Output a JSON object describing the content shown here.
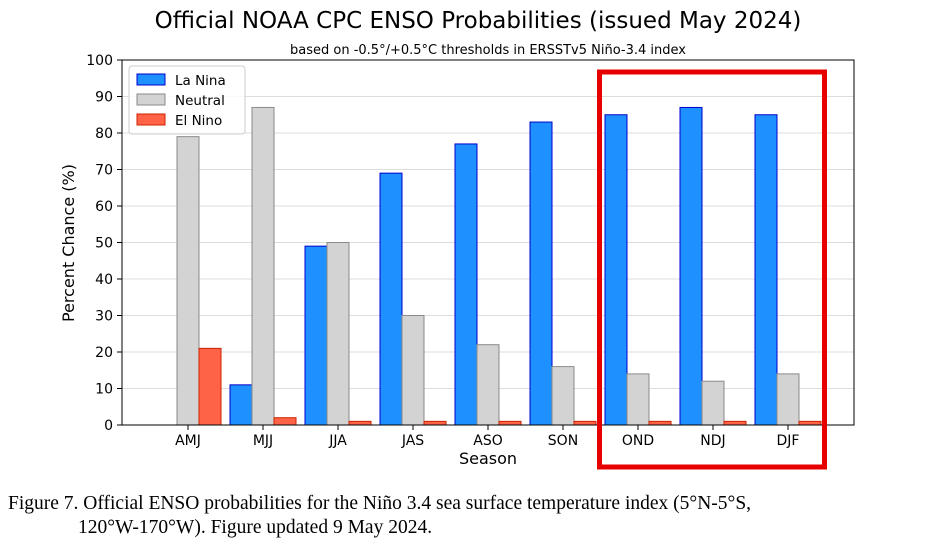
{
  "chart_data": {
    "type": "bar",
    "title": "Official NOAA CPC ENSO Probabilities (issued May 2024)",
    "subtitle": "based on -0.5°/+0.5°C thresholds in ERSSTv5 Niño-3.4 index",
    "xlabel": "Season",
    "ylabel": "Percent Chance (%)",
    "ylim": [
      0,
      100
    ],
    "yticks": [
      "0",
      "10",
      "20",
      "30",
      "40",
      "50",
      "60",
      "70",
      "80",
      "90",
      "100"
    ],
    "grid": true,
    "legend_position": "top-left",
    "categories": [
      "AMJ",
      "MJJ",
      "JJA",
      "JAS",
      "ASO",
      "SON",
      "OND",
      "NDJ",
      "DJF"
    ],
    "series": [
      {
        "name": "La Nina",
        "color": "#1e90ff",
        "edge": "#0000cc",
        "values": [
          0,
          11,
          49,
          69,
          77,
          83,
          85,
          87,
          85
        ]
      },
      {
        "name": "Neutral",
        "color": "#d3d3d3",
        "edge": "#8a8a8a",
        "values": [
          79,
          87,
          50,
          30,
          22,
          16,
          14,
          12,
          14
        ]
      },
      {
        "name": "El Nino",
        "color": "#ff6347",
        "edge": "#cc2200",
        "values": [
          21,
          2,
          1,
          1,
          1,
          1,
          1,
          1,
          1
        ]
      }
    ],
    "highlight": {
      "categories": [
        "OND",
        "NDJ",
        "DJF"
      ],
      "color": "#e60000"
    }
  },
  "caption": {
    "line1": "Figure 7. Official ENSO probabilities for the Niño 3.4 sea surface temperature index (5°N-5°S,",
    "line2": "120°W-170°W). Figure updated 9 May 2024."
  }
}
